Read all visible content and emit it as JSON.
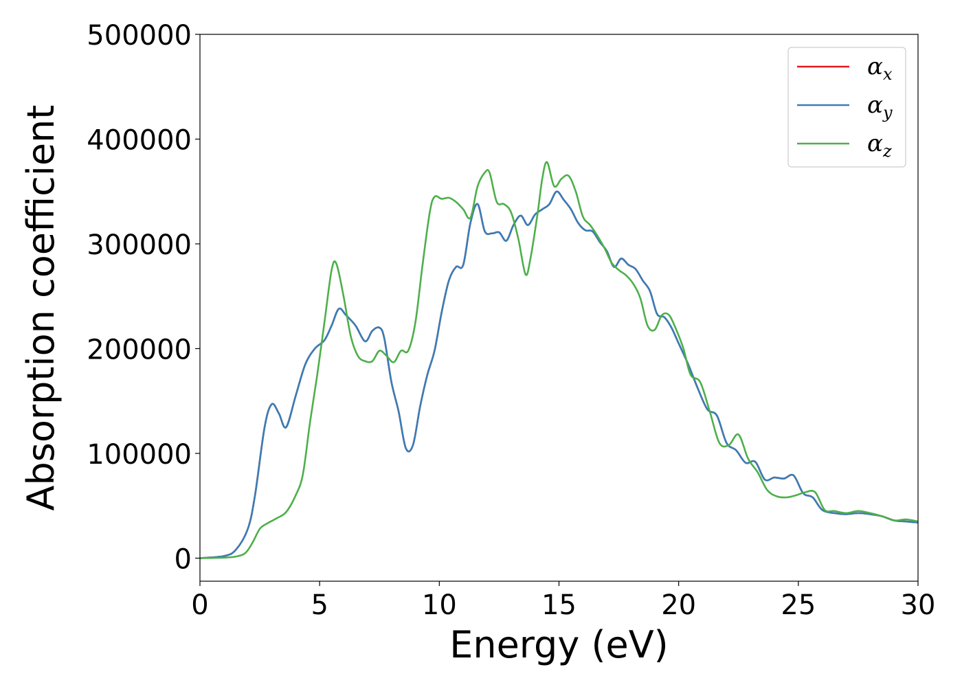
{
  "chart_data": {
    "type": "line",
    "xlabel": "Energy (eV)",
    "ylabel": "Absorption coefficient",
    "xlim": [
      0,
      30
    ],
    "ylim": [
      -22000,
      500000
    ],
    "xticks": [
      0,
      5,
      10,
      15,
      20,
      25,
      30
    ],
    "yticks": [
      0,
      100000,
      200000,
      300000,
      400000,
      500000
    ],
    "grid": false,
    "legend_position": "top-right",
    "series": [
      {
        "name": "α",
        "sub": "x",
        "color": "#e41a1c",
        "x": [
          0,
          1,
          1.5,
          2,
          2.3,
          2.7,
          3.0,
          3.3,
          3.6,
          4.0,
          4.4,
          4.8,
          5.2,
          5.5,
          5.8,
          6.1,
          6.5,
          6.9,
          7.2,
          7.5,
          7.7,
          8.0,
          8.3,
          8.6,
          8.9,
          9.2,
          9.5,
          9.8,
          10.1,
          10.4,
          10.7,
          11.0,
          11.3,
          11.6,
          11.9,
          12.2,
          12.5,
          12.8,
          13.1,
          13.4,
          13.7,
          14.0,
          14.3,
          14.6,
          14.9,
          15.2,
          15.5,
          15.8,
          16.1,
          16.4,
          16.7,
          17.0,
          17.3,
          17.6,
          17.9,
          18.2,
          18.5,
          18.8,
          19.1,
          19.4,
          19.7,
          20.0,
          20.4,
          20.8,
          21.2,
          21.6,
          22.0,
          22.4,
          22.8,
          23.2,
          23.6,
          24.0,
          24.4,
          24.8,
          25.2,
          25.6,
          26.0,
          26.5,
          27.0,
          27.5,
          28.0,
          28.5,
          29.0,
          29.5,
          30.0
        ],
        "values": [
          0,
          2000,
          8000,
          28000,
          60000,
          125000,
          147000,
          138000,
          125000,
          155000,
          185000,
          200000,
          208000,
          222000,
          238000,
          232000,
          222000,
          207000,
          217000,
          220000,
          210000,
          168000,
          140000,
          105000,
          108000,
          145000,
          175000,
          198000,
          235000,
          265000,
          278000,
          280000,
          320000,
          338000,
          312000,
          310000,
          311000,
          303000,
          318000,
          327000,
          318000,
          328000,
          333000,
          338000,
          350000,
          342000,
          333000,
          320000,
          313000,
          312000,
          302000,
          293000,
          278000,
          286000,
          280000,
          276000,
          265000,
          255000,
          233000,
          230000,
          220000,
          205000,
          185000,
          162000,
          142000,
          136000,
          110000,
          103000,
          91000,
          92000,
          75000,
          77000,
          76000,
          79000,
          62000,
          58000,
          46000,
          43000,
          42000,
          43000,
          42000,
          40000,
          36000,
          35000,
          34000
        ]
      },
      {
        "name": "α",
        "sub": "y",
        "color": "#377eb8",
        "x": [
          0,
          1,
          1.5,
          2,
          2.3,
          2.7,
          3.0,
          3.3,
          3.6,
          4.0,
          4.4,
          4.8,
          5.2,
          5.5,
          5.8,
          6.1,
          6.5,
          6.9,
          7.2,
          7.5,
          7.7,
          8.0,
          8.3,
          8.6,
          8.9,
          9.2,
          9.5,
          9.8,
          10.1,
          10.4,
          10.7,
          11.0,
          11.3,
          11.6,
          11.9,
          12.2,
          12.5,
          12.8,
          13.1,
          13.4,
          13.7,
          14.0,
          14.3,
          14.6,
          14.9,
          15.2,
          15.5,
          15.8,
          16.1,
          16.4,
          16.7,
          17.0,
          17.3,
          17.6,
          17.9,
          18.2,
          18.5,
          18.8,
          19.1,
          19.4,
          19.7,
          20.0,
          20.4,
          20.8,
          21.2,
          21.6,
          22.0,
          22.4,
          22.8,
          23.2,
          23.6,
          24.0,
          24.4,
          24.8,
          25.2,
          25.6,
          26.0,
          26.5,
          27.0,
          27.5,
          28.0,
          28.5,
          29.0,
          29.5,
          30.0
        ],
        "values": [
          0,
          2000,
          8000,
          28000,
          60000,
          125000,
          147000,
          138000,
          125000,
          155000,
          185000,
          200000,
          208000,
          222000,
          238000,
          232000,
          222000,
          207000,
          217000,
          220000,
          210000,
          168000,
          140000,
          105000,
          108000,
          145000,
          175000,
          198000,
          235000,
          265000,
          278000,
          280000,
          320000,
          338000,
          312000,
          310000,
          311000,
          303000,
          318000,
          327000,
          318000,
          328000,
          333000,
          338000,
          350000,
          342000,
          333000,
          320000,
          313000,
          312000,
          302000,
          293000,
          278000,
          286000,
          280000,
          276000,
          265000,
          255000,
          233000,
          230000,
          220000,
          205000,
          185000,
          162000,
          142000,
          136000,
          110000,
          103000,
          91000,
          92000,
          75000,
          77000,
          76000,
          79000,
          62000,
          58000,
          46000,
          43000,
          42000,
          43000,
          42000,
          40000,
          36000,
          35000,
          34000
        ]
      },
      {
        "name": "α",
        "sub": "z",
        "color": "#4daf4a",
        "x": [
          0,
          1,
          1.5,
          1.9,
          2.2,
          2.5,
          2.8,
          3.2,
          3.6,
          4.0,
          4.3,
          4.6,
          4.9,
          5.2,
          5.5,
          5.7,
          6.0,
          6.3,
          6.6,
          6.9,
          7.2,
          7.5,
          7.8,
          8.1,
          8.4,
          8.7,
          9.0,
          9.3,
          9.6,
          9.8,
          10.1,
          10.4,
          10.7,
          11.0,
          11.3,
          11.6,
          11.9,
          12.1,
          12.4,
          12.7,
          13.0,
          13.3,
          13.6,
          13.8,
          14.1,
          14.3,
          14.5,
          14.8,
          15.1,
          15.4,
          15.7,
          16.0,
          16.3,
          16.6,
          16.9,
          17.2,
          17.5,
          17.8,
          18.1,
          18.4,
          18.7,
          19.0,
          19.3,
          19.6,
          19.9,
          20.2,
          20.5,
          20.9,
          21.3,
          21.7,
          22.1,
          22.5,
          22.9,
          23.3,
          23.7,
          24.1,
          24.5,
          24.9,
          25.3,
          25.7,
          26.1,
          26.5,
          27.0,
          27.5,
          28.0,
          28.5,
          29.0,
          29.5,
          30.0
        ],
        "values": [
          0,
          500,
          1500,
          5000,
          15000,
          28000,
          33000,
          38000,
          44000,
          60000,
          80000,
          130000,
          175000,
          225000,
          275000,
          281000,
          250000,
          212000,
          193000,
          188000,
          188000,
          198000,
          193000,
          187000,
          198000,
          198000,
          225000,
          280000,
          330000,
          345000,
          343000,
          344000,
          340000,
          333000,
          325000,
          355000,
          368000,
          368000,
          340000,
          338000,
          330000,
          305000,
          271000,
          285000,
          328000,
          362000,
          378000,
          355000,
          362000,
          365000,
          350000,
          326000,
          318000,
          308000,
          296000,
          282000,
          275000,
          270000,
          262000,
          248000,
          222000,
          218000,
          232000,
          232000,
          218000,
          200000,
          175000,
          168000,
          140000,
          110000,
          108000,
          118000,
          95000,
          82000,
          65000,
          59000,
          58000,
          60000,
          63000,
          63000,
          46000,
          45000,
          43000,
          45000,
          43000,
          40000,
          36000,
          37000,
          35000
        ]
      }
    ]
  }
}
